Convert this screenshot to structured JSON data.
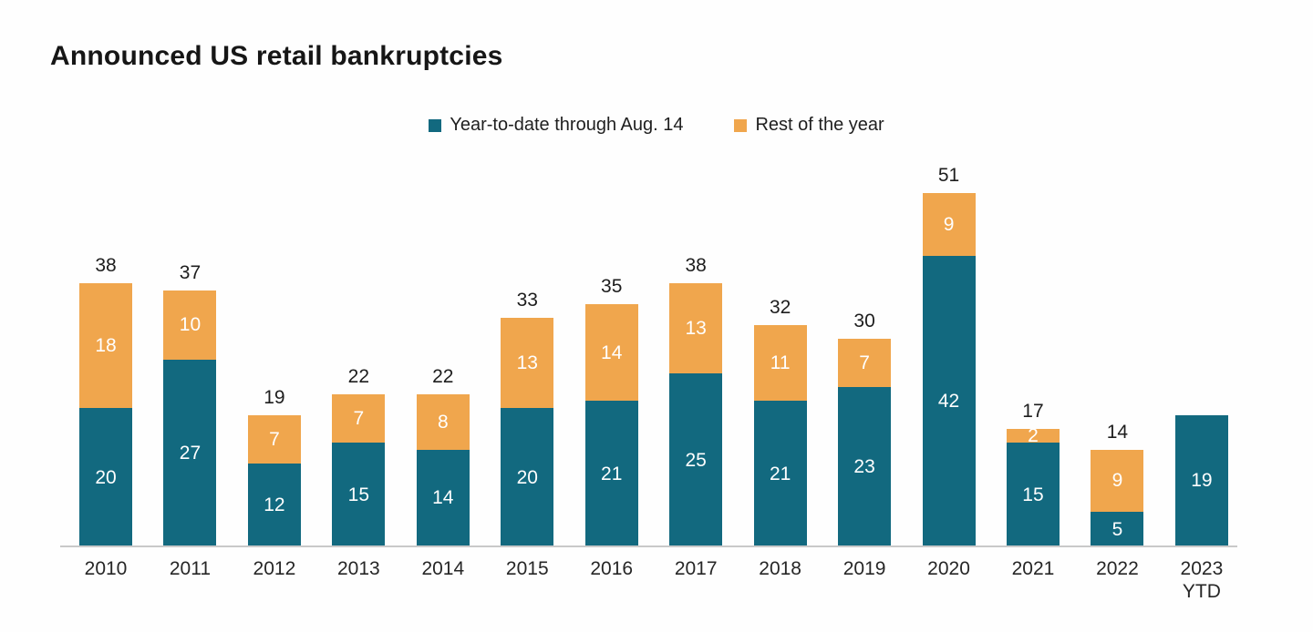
{
  "title": "Announced US retail bankruptcies",
  "legend": {
    "items": [
      {
        "label": "Year-to-date through Aug. 14",
        "color": "#12697F"
      },
      {
        "label": "Rest of the year",
        "color": "#F0A64D"
      }
    ]
  },
  "chart_data": {
    "type": "bar",
    "stacked": true,
    "title": "Announced US retail bankruptcies",
    "categories": [
      "2010",
      "2011",
      "2012",
      "2013",
      "2014",
      "2015",
      "2016",
      "2017",
      "2018",
      "2019",
      "2020",
      "2021",
      "2022",
      "2023 YTD"
    ],
    "tick_labels": [
      "2010",
      "2011",
      "2012",
      "2013",
      "2014",
      "2015",
      "2016",
      "2017",
      "2018",
      "2019",
      "2020",
      "2021",
      "2022",
      "2023\nYTD"
    ],
    "series": [
      {
        "name": "Year-to-date through Aug. 14",
        "color": "#12697F",
        "values": [
          20,
          27,
          12,
          15,
          14,
          20,
          21,
          25,
          21,
          23,
          42,
          15,
          5,
          19
        ]
      },
      {
        "name": "Rest of the year",
        "color": "#F0A64D",
        "values": [
          18,
          10,
          7,
          7,
          8,
          13,
          14,
          13,
          11,
          7,
          9,
          2,
          9,
          0
        ]
      }
    ],
    "totals": [
      38,
      37,
      19,
      22,
      22,
      33,
      35,
      38,
      32,
      30,
      51,
      17,
      14,
      19
    ],
    "total_labels": [
      "38",
      "37",
      "19",
      "22",
      "22",
      "33",
      "35",
      "38",
      "32",
      "30",
      "51",
      "17",
      "14",
      ""
    ],
    "value_label_color": "#FFFFFF",
    "axis_line_color": "#C9C9C9",
    "ylim": [
      0,
      55
    ],
    "grid": false,
    "legend_position": "top-center",
    "xlabel": "",
    "ylabel": ""
  }
}
